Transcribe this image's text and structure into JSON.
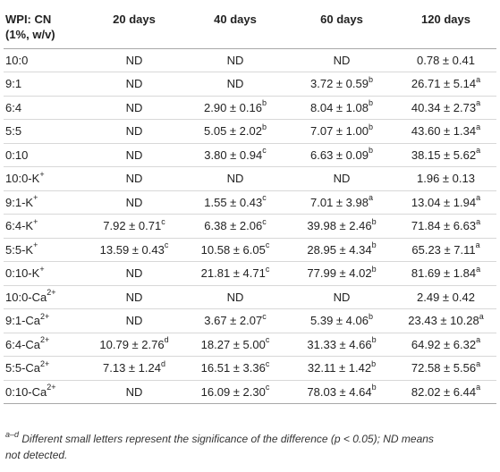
{
  "table": {
    "headers": [
      [
        "WPI: CN",
        "(1%, w/v)"
      ],
      [
        "20 days"
      ],
      [
        "40 days"
      ],
      [
        "60 days"
      ],
      [
        "120 days"
      ]
    ],
    "rows": [
      {
        "sample": [
          "10:0",
          ""
        ],
        "cells": [
          [
            "ND",
            ""
          ],
          [
            "ND",
            ""
          ],
          [
            "ND",
            ""
          ],
          [
            "0.78 ± 0.41",
            ""
          ]
        ]
      },
      {
        "sample": [
          "9:1",
          ""
        ],
        "cells": [
          [
            "ND",
            ""
          ],
          [
            "ND",
            ""
          ],
          [
            "3.72 ± 0.59",
            "b"
          ],
          [
            "26.71 ± 5.14",
            "a"
          ]
        ]
      },
      {
        "sample": [
          "6:4",
          ""
        ],
        "cells": [
          [
            "ND",
            ""
          ],
          [
            "2.90 ± 0.16",
            "b"
          ],
          [
            "8.04 ± 1.08",
            "b"
          ],
          [
            "40.34 ± 2.73",
            "a"
          ]
        ]
      },
      {
        "sample": [
          "5:5",
          ""
        ],
        "cells": [
          [
            "ND",
            ""
          ],
          [
            "5.05 ± 2.02",
            "b"
          ],
          [
            "7.07 ± 1.00",
            "b"
          ],
          [
            "43.60 ± 1.34",
            "a"
          ]
        ]
      },
      {
        "sample": [
          "0:10",
          ""
        ],
        "cells": [
          [
            "ND",
            ""
          ],
          [
            "3.80 ± 0.94",
            "c"
          ],
          [
            "6.63 ± 0.09",
            "b"
          ],
          [
            "38.15 ± 5.62",
            "a"
          ]
        ]
      },
      {
        "sample": [
          "10:0-K",
          "+"
        ],
        "cells": [
          [
            "ND",
            ""
          ],
          [
            "ND",
            ""
          ],
          [
            "ND",
            ""
          ],
          [
            "1.96 ± 0.13",
            ""
          ]
        ]
      },
      {
        "sample": [
          "9:1-K",
          "+"
        ],
        "cells": [
          [
            "ND",
            ""
          ],
          [
            "1.55 ± 0.43",
            "c"
          ],
          [
            "7.01 ± 3.98",
            "a"
          ],
          [
            "13.04 ± 1.94",
            "a"
          ]
        ]
      },
      {
        "sample": [
          "6:4-K",
          "+"
        ],
        "cells": [
          [
            "7.92 ± 0.71",
            "c"
          ],
          [
            "6.38 ± 2.06",
            "c"
          ],
          [
            "39.98 ± 2.46",
            "b"
          ],
          [
            "71.84 ± 6.63",
            "a"
          ]
        ]
      },
      {
        "sample": [
          "5:5-K",
          "+"
        ],
        "cells": [
          [
            "13.59 ± 0.43",
            "c"
          ],
          [
            "10.58 ± 6.05",
            "c"
          ],
          [
            "28.95 ± 4.34",
            "b"
          ],
          [
            "65.23 ± 7.11",
            "a"
          ]
        ]
      },
      {
        "sample": [
          "0:10-K",
          "+"
        ],
        "cells": [
          [
            "ND",
            ""
          ],
          [
            "21.81 ± 4.71",
            "c"
          ],
          [
            "77.99 ± 4.02",
            "b"
          ],
          [
            "81.69 ± 1.84",
            "a"
          ]
        ]
      },
      {
        "sample": [
          "10:0-Ca",
          "2+"
        ],
        "cells": [
          [
            "ND",
            ""
          ],
          [
            "ND",
            ""
          ],
          [
            "ND",
            ""
          ],
          [
            "2.49 ± 0.42",
            ""
          ]
        ]
      },
      {
        "sample": [
          "9:1-Ca",
          "2+"
        ],
        "cells": [
          [
            "ND",
            ""
          ],
          [
            "3.67 ± 2.07",
            "c"
          ],
          [
            "5.39 ± 4.06",
            "b"
          ],
          [
            "23.43 ± 10.28",
            "a"
          ]
        ]
      },
      {
        "sample": [
          "6:4-Ca",
          "2+"
        ],
        "cells": [
          [
            "10.79 ± 2.76",
            "d"
          ],
          [
            "18.27 ± 5.00",
            "c"
          ],
          [
            "31.33 ± 4.66",
            "b"
          ],
          [
            "64.92 ± 6.32",
            "a"
          ]
        ]
      },
      {
        "sample": [
          "5:5-Ca",
          "2+"
        ],
        "cells": [
          [
            "7.13 ± 1.24",
            "d"
          ],
          [
            "16.51 ± 3.36",
            "c"
          ],
          [
            "32.11 ± 1.42",
            "b"
          ],
          [
            "72.58 ± 5.56",
            "a"
          ]
        ]
      },
      {
        "sample": [
          "0:10-Ca",
          "2+"
        ],
        "cells": [
          [
            "ND",
            ""
          ],
          [
            "16.09 ± 2.30",
            "c"
          ],
          [
            "78.03 ± 4.64",
            "b"
          ],
          [
            "82.02 ± 6.44",
            "a"
          ]
        ]
      }
    ]
  },
  "footnote": {
    "marker": "a–d",
    "line1": " Different small letters represent the significance of the difference (p < 0.05); ND means",
    "line2": "not detected."
  }
}
